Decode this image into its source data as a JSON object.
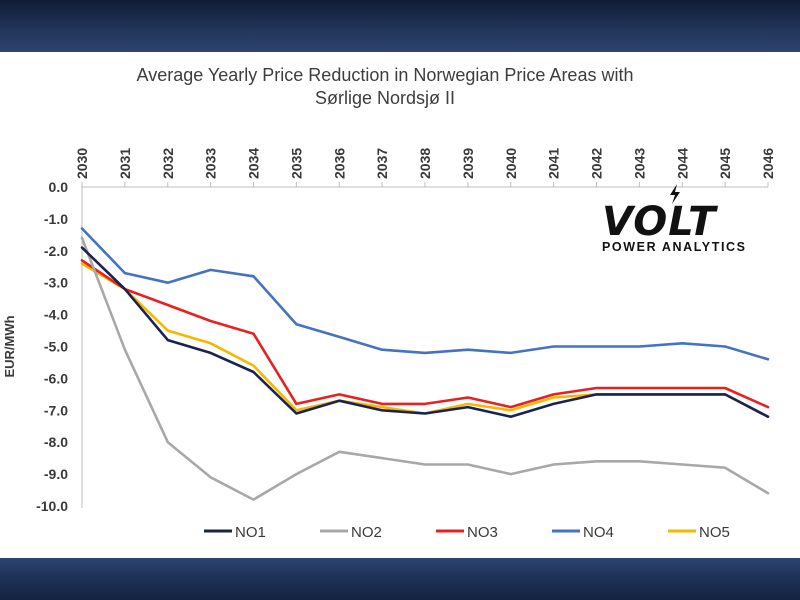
{
  "chart_data": {
    "type": "line",
    "title_line1": "Average Yearly Price Reduction in Norwegian Price Areas with",
    "title_line2": "Sørlige Nordsjø II",
    "ylabel": "EUR/MWh",
    "xlabel": "",
    "x": [
      "2030",
      "2031",
      "2032",
      "2033",
      "2034",
      "2035",
      "2036",
      "2037",
      "2038",
      "2039",
      "2040",
      "2041",
      "2042",
      "2043",
      "2044",
      "2045",
      "2046"
    ],
    "y_ticks": [
      "0.0",
      "-1.0",
      "-2.0",
      "-3.0",
      "-4.0",
      "-5.0",
      "-6.0",
      "-7.0",
      "-8.0",
      "-9.0",
      "-10.0"
    ],
    "ylim": [
      -10,
      0
    ],
    "grid": false,
    "legend_position": "bottom",
    "x_axis_position": "top",
    "series": [
      {
        "name": "NO1",
        "color": "#1a2350",
        "values": [
          -1.9,
          -3.2,
          -4.8,
          -5.2,
          -5.8,
          -7.1,
          -6.7,
          -7.0,
          -7.1,
          -6.9,
          -7.2,
          -6.8,
          -6.5,
          -6.5,
          -6.5,
          -6.5,
          -7.2
        ]
      },
      {
        "name": "NO2",
        "color": "#a8a8a8",
        "values": [
          -1.6,
          -5.1,
          -8.0,
          -9.1,
          -9.8,
          -9.0,
          -8.3,
          -8.5,
          -8.7,
          -8.7,
          -9.0,
          -8.7,
          -8.6,
          -8.6,
          -8.7,
          -8.8,
          -9.6
        ]
      },
      {
        "name": "NO3",
        "color": "#e8211f",
        "values": [
          -2.3,
          -3.2,
          -3.7,
          -4.2,
          -4.6,
          -6.8,
          -6.5,
          -6.8,
          -6.8,
          -6.6,
          -6.9,
          -6.5,
          -6.3,
          -6.3,
          -6.3,
          -6.3,
          -6.9
        ]
      },
      {
        "name": "NO4",
        "color": "#4472c4",
        "values": [
          -1.3,
          -2.7,
          -3.0,
          -2.6,
          -2.8,
          -4.3,
          -4.7,
          -5.1,
          -5.2,
          -5.1,
          -5.2,
          -5.0,
          -5.0,
          -5.0,
          -4.9,
          -5.0,
          -5.4
        ]
      },
      {
        "name": "NO5",
        "color": "#f5b800",
        "values": [
          -2.4,
          -3.2,
          -4.5,
          -4.9,
          -5.6,
          -7.0,
          -6.7,
          -6.9,
          -7.1,
          -6.8,
          -7.0,
          -6.6,
          -6.5,
          -6.5,
          -6.5,
          -6.5,
          -7.2
        ]
      }
    ]
  },
  "logo": {
    "word": "VOLT",
    "tagline": "POWER ANALYTICS"
  }
}
